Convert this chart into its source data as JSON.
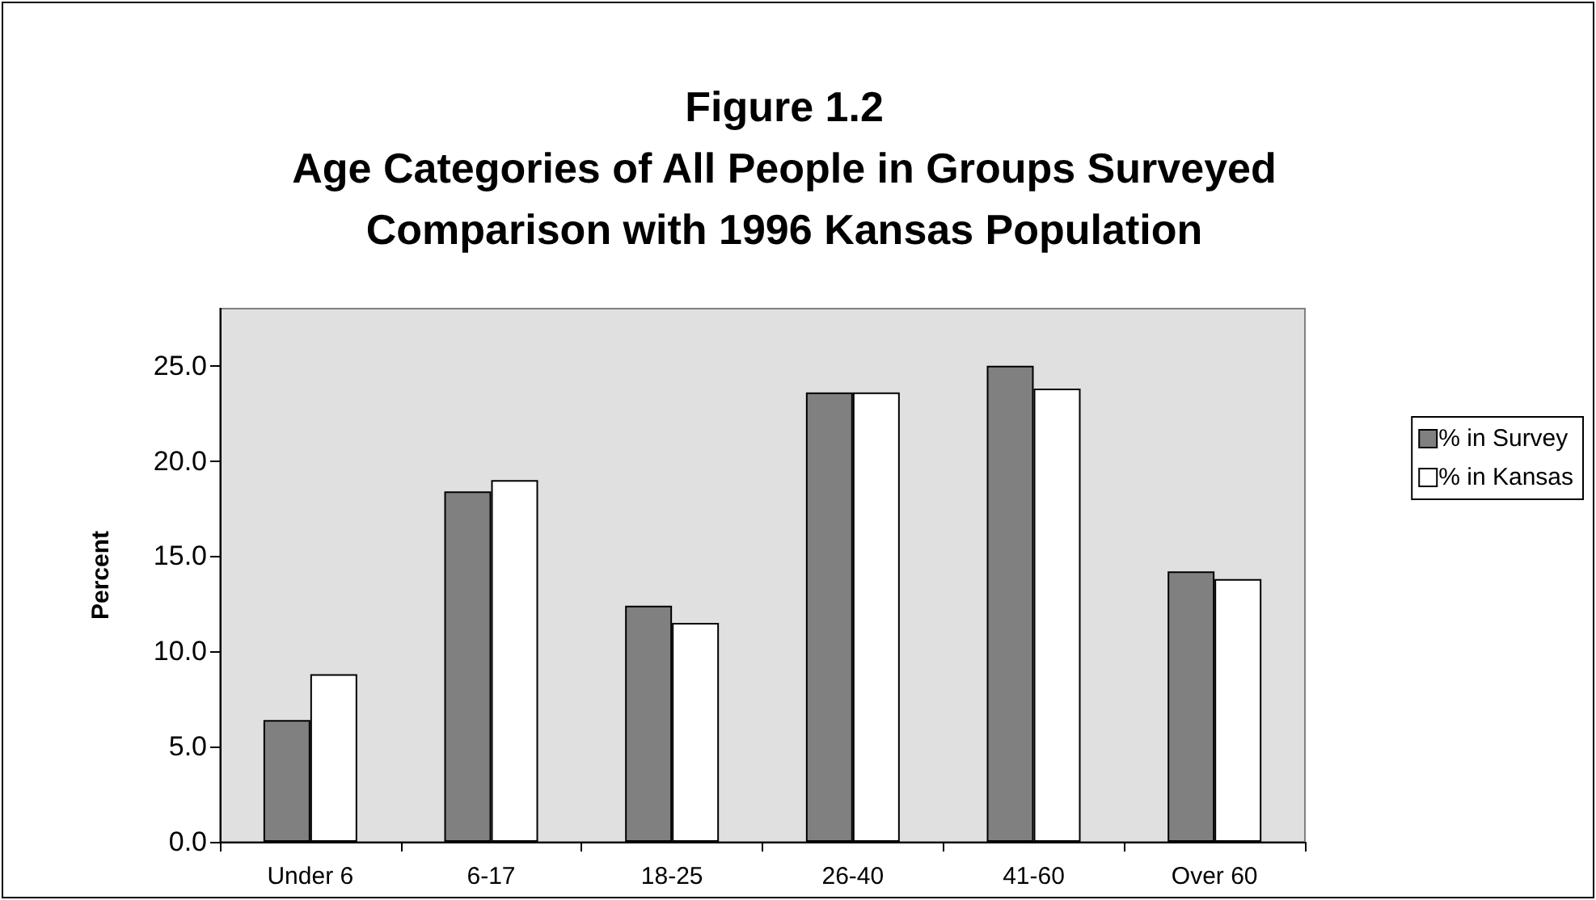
{
  "chart_data": {
    "type": "bar",
    "title": "Figure 1.2\nAge Categories of All People in Groups Surveyed\nComparison with 1996 Kansas Population",
    "ylabel": "Percent",
    "categories": [
      "Under 6",
      "6-17",
      "18-25",
      "26-40",
      "41-60",
      "Over 60"
    ],
    "series": [
      {
        "name": "% in Survey",
        "color": "#808080",
        "values": [
          6.4,
          18.4,
          12.4,
          23.6,
          25.0,
          14.2
        ]
      },
      {
        "name": "% in Kansas",
        "color": "#ffffff",
        "values": [
          8.8,
          19.0,
          11.5,
          23.6,
          23.8,
          13.8
        ]
      }
    ],
    "ylim": [
      0,
      28
    ],
    "yticks": [
      {
        "value": 0,
        "label": "0.0"
      },
      {
        "value": 5,
        "label": "5.0"
      },
      {
        "value": 10,
        "label": "10.0"
      },
      {
        "value": 15,
        "label": "15.0"
      },
      {
        "value": 20,
        "label": "20.0"
      },
      {
        "value": 25,
        "label": "25.0"
      }
    ],
    "grid": false,
    "legend": "right"
  }
}
